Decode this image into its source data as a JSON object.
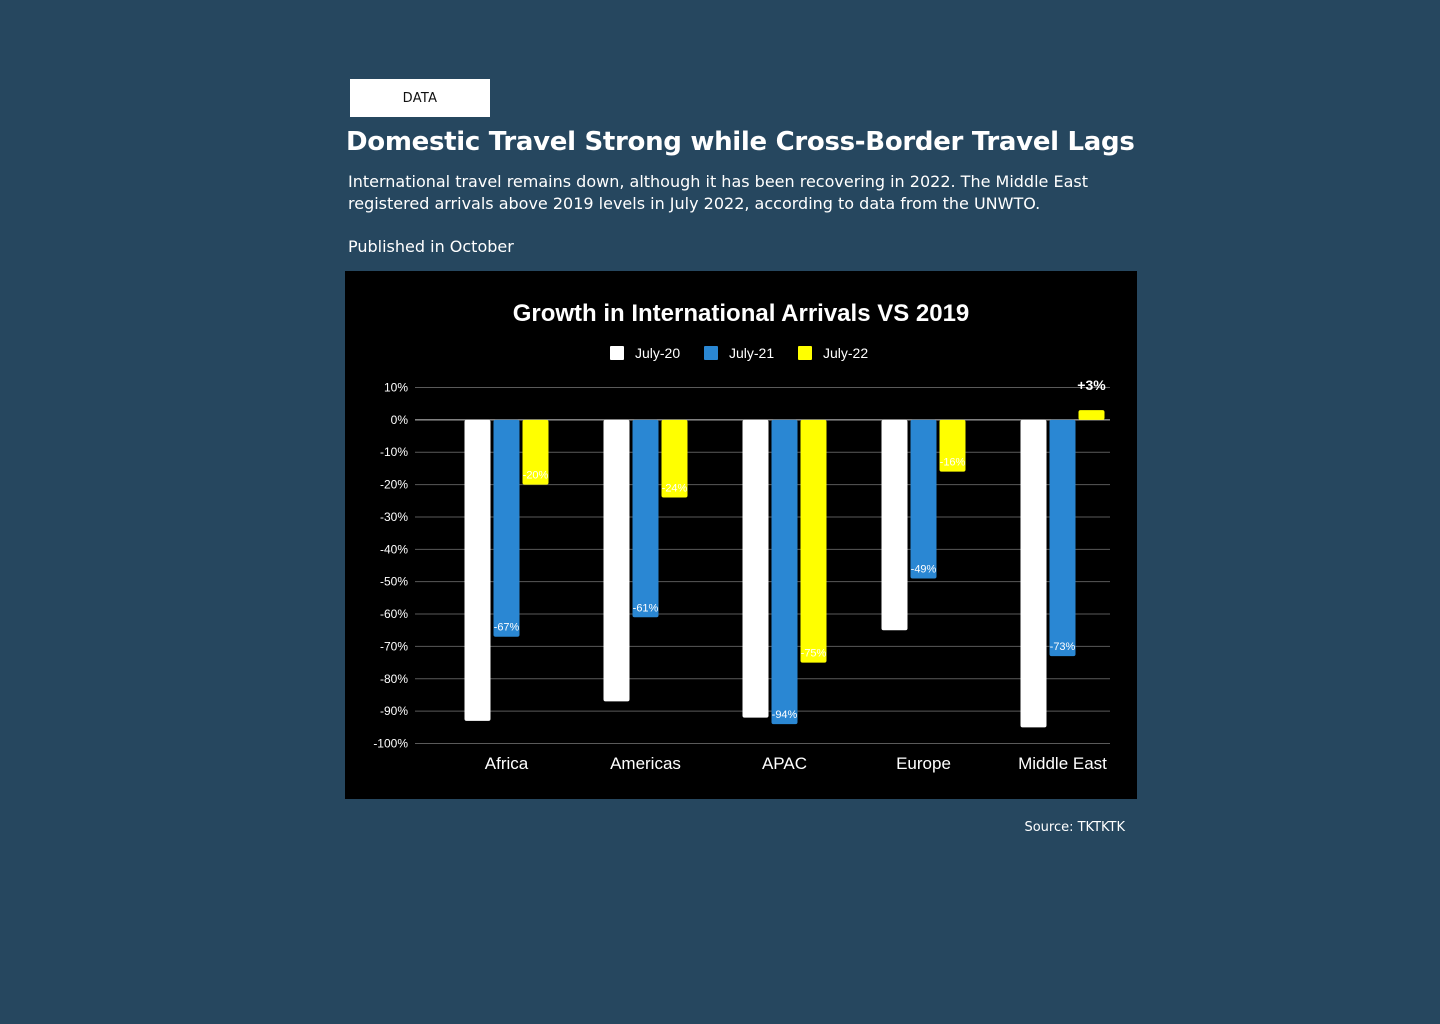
{
  "header": {
    "tag_label": "DATA",
    "title": "Domestic Travel Strong while Cross-Border Travel Lags",
    "subtitle": "International travel remains down, although it has been recovering in 2022. The Middle East registered arrivals above 2019 levels in July 2022, according to data from the UNWTO.",
    "published": "Published in October"
  },
  "footer": {
    "source": "Source: TKTKTK"
  },
  "chart_data": {
    "type": "bar",
    "title": "Growth in International Arrivals VS 2019",
    "categories": [
      "Africa",
      "Americas",
      "APAC",
      "Europe",
      "Middle East"
    ],
    "series": [
      {
        "name": "July-20",
        "color": "#ffffff",
        "values": [
          -93,
          -87,
          -92,
          -65,
          -95
        ],
        "labels": []
      },
      {
        "name": "July-21",
        "color": "#2a87d3",
        "values": [
          -67,
          -61,
          -94,
          -49,
          -73
        ],
        "labels": [
          "-67%",
          "-61%",
          "-94%",
          "-49%",
          "-73%"
        ]
      },
      {
        "name": "July-22",
        "color": "#ffff00",
        "values": [
          -20,
          -24,
          -75,
          -16,
          3
        ],
        "labels": [
          "-20%",
          "-24%",
          "-75%",
          "-16%",
          "+3%"
        ]
      }
    ],
    "ylim": [
      -100,
      10
    ],
    "yticks": [
      "10%",
      "0%",
      "-10%",
      "-20%",
      "-30%",
      "-40%",
      "-50%",
      "-60%",
      "-70%",
      "-80%",
      "-90%",
      "-100%"
    ],
    "ytick_values": [
      10,
      0,
      -10,
      -20,
      -30,
      -40,
      -50,
      -60,
      -70,
      -80,
      -90,
      -100
    ],
    "grid": true,
    "legend_position": "top-center",
    "xlabel": "",
    "ylabel": ""
  }
}
